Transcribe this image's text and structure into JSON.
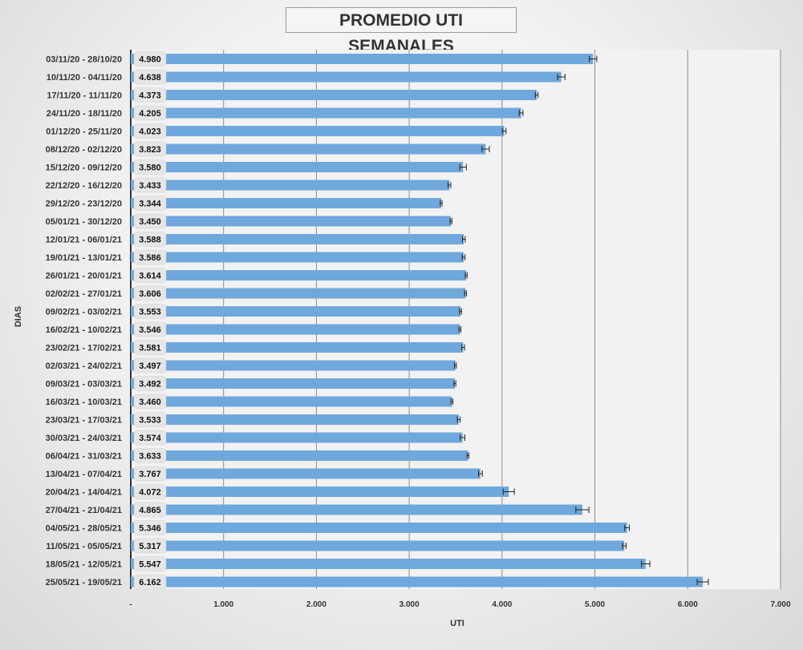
{
  "chart_data": {
    "type": "bar",
    "orientation": "horizontal",
    "title": "PROMEDIO UTI SEMANALES",
    "xlabel": "UTI",
    "ylabel": "DIAS",
    "xlim": [
      0,
      7000
    ],
    "x_ticks": [
      "-",
      "1.000",
      "2.000",
      "3.000",
      "4.000",
      "5.000",
      "6.000",
      "7.000"
    ],
    "grid": true,
    "error_bars": true,
    "bar_color": "#6fa8dc",
    "categories": [
      "03/11/20 - 28/10/20",
      "10/11/20 - 04/11/20",
      "17/11/20 - 11/11/20",
      "24/11/20 - 18/11/20",
      "01/12/20 - 25/11/20",
      "08/12/20 - 02/12/20",
      "15/12/20 - 09/12/20",
      "22/12/20 - 16/12/20",
      "29/12/20 - 23/12/20",
      "05/01/21 - 30/12/20",
      "12/01/21 - 06/01/21",
      "19/01/21 - 13/01/21",
      "26/01/21 - 20/01/21",
      "02/02/21 - 27/01/21",
      "09/02/21 - 03/02/21",
      "16/02/21 - 10/02/21",
      "23/02/21 - 17/02/21",
      "02/03/21 - 24/02/21",
      "09/03/21 - 03/03/21",
      "16/03/21 - 10/03/21",
      "23/03/21 - 17/03/21",
      "30/03/21 - 24/03/21",
      "06/04/21 - 31/03/21",
      "13/04/21 - 07/04/21",
      "20/04/21 - 14/04/21",
      "27/04/21 - 21/04/21",
      "04/05/21 - 28/05/21",
      "11/05/21 - 05/05/21",
      "18/05/21 - 12/05/21",
      "25/05/21 - 19/05/21"
    ],
    "values": [
      4980,
      4638,
      4373,
      4205,
      4023,
      3823,
      3580,
      3433,
      3344,
      3450,
      3588,
      3586,
      3614,
      3606,
      3553,
      3546,
      3581,
      3497,
      3492,
      3460,
      3533,
      3574,
      3633,
      3767,
      4072,
      4865,
      5346,
      5317,
      5547,
      6162
    ],
    "value_labels": [
      "4.980",
      "4.638",
      "4.373",
      "4.205",
      "4.023",
      "3.823",
      "3.580",
      "3.433",
      "3.344",
      "3.450",
      "3.588",
      "3.586",
      "3.614",
      "3.606",
      "3.553",
      "3.546",
      "3.581",
      "3.497",
      "3.492",
      "3.460",
      "3.533",
      "3.574",
      "3.633",
      "3.767",
      "4.072",
      "4.865",
      "5.346",
      "5.317",
      "5.547",
      "6.162"
    ],
    "errors": [
      40,
      40,
      15,
      20,
      20,
      40,
      35,
      15,
      10,
      10,
      15,
      15,
      10,
      10,
      10,
      10,
      15,
      10,
      10,
      10,
      15,
      25,
      10,
      20,
      60,
      70,
      25,
      20,
      45,
      60
    ]
  }
}
